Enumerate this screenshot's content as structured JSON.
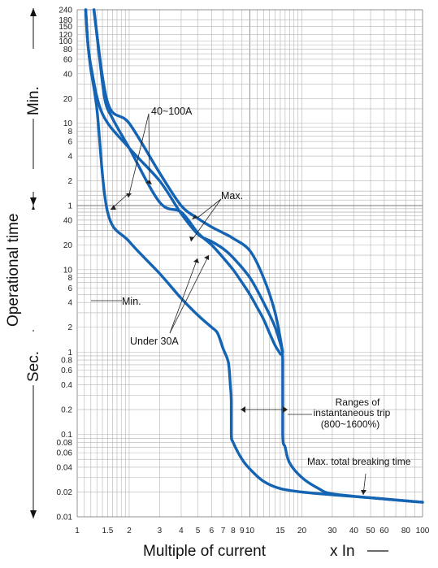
{
  "chart_data": {
    "type": "line",
    "xlabel": "Multiple of current",
    "xlabel_unit": "x In",
    "ylabel": "Operational time",
    "y_unit_min": "Min.",
    "y_unit_sec": "Sec.",
    "x_scale": "log",
    "y_scale": "log",
    "grid": true,
    "xlim": [
      1,
      100
    ],
    "x_ticks": [
      {
        "v": 1,
        "label": "1"
      },
      {
        "v": 1.5,
        "label": "1.5"
      },
      {
        "v": 2,
        "label": "2"
      },
      {
        "v": 3,
        "label": "3"
      },
      {
        "v": 4,
        "label": "4"
      },
      {
        "v": 5,
        "label": "5"
      },
      {
        "v": 6,
        "label": "6"
      },
      {
        "v": 7,
        "label": "7"
      },
      {
        "v": 8,
        "label": "8"
      },
      {
        "v": 9,
        "label": "9"
      },
      {
        "v": 10,
        "label": "10"
      },
      {
        "v": 15,
        "label": "15"
      },
      {
        "v": 20,
        "label": "20"
      },
      {
        "v": 30,
        "label": "30"
      },
      {
        "v": 40,
        "label": "40"
      },
      {
        "v": 50,
        "label": "50"
      },
      {
        "v": 60,
        "label": "60"
      },
      {
        "v": 80,
        "label": "80"
      },
      {
        "v": 100,
        "label": "100"
      }
    ],
    "y_ticks_min": [
      "240",
      "180",
      "150",
      "120",
      "100",
      "80",
      "60",
      "40",
      "20",
      "10",
      "8",
      "6",
      "4",
      "2",
      "1"
    ],
    "y_ticks_sec": [
      "40",
      "20",
      "10",
      "8",
      "6",
      "4",
      "2",
      "1",
      "0.8",
      "0.6",
      "0.4",
      "0.2",
      "0.1",
      "0.08",
      "0.06",
      "0.04",
      "0.02",
      "0.01"
    ],
    "series": [
      {
        "name": "Min.",
        "points": [
          [
            1.12,
            14400
          ],
          [
            1.15,
            6000
          ],
          [
            1.2,
            2700
          ],
          [
            1.3,
            900
          ],
          [
            1.5,
            50
          ],
          [
            2,
            22
          ],
          [
            3,
            9
          ],
          [
            4,
            4.5
          ],
          [
            5,
            2.8
          ],
          [
            6,
            2
          ],
          [
            6.5,
            1.7
          ],
          [
            7,
            1.1
          ],
          [
            7.5,
            0.75
          ],
          [
            7.7,
            0.4
          ],
          [
            7.8,
            0.26
          ],
          [
            7.8,
            0.1
          ],
          [
            8,
            0.08
          ],
          [
            9,
            0.05
          ],
          [
            10,
            0.038
          ],
          [
            12,
            0.027
          ],
          [
            15,
            0.022
          ],
          [
            20,
            0.02
          ],
          [
            30,
            0.0185
          ],
          [
            50,
            0.017
          ],
          [
            100,
            0.015
          ]
        ]
      },
      {
        "name": "Under 30A",
        "points": [
          [
            1.25,
            14400
          ],
          [
            1.3,
            7200
          ],
          [
            1.35,
            3600
          ],
          [
            1.45,
            1140
          ],
          [
            1.6,
            690
          ],
          [
            2,
            300
          ],
          [
            3,
            66
          ],
          [
            4,
            50
          ],
          [
            5,
            28
          ],
          [
            6,
            20
          ],
          [
            7,
            14
          ],
          [
            8,
            10
          ],
          [
            9,
            7
          ],
          [
            10,
            5
          ],
          [
            11,
            3.5
          ],
          [
            12,
            2.5
          ],
          [
            13,
            1.7
          ],
          [
            14,
            1.2
          ],
          [
            15,
            0.95
          ],
          [
            15.5,
            0.8
          ],
          [
            15.5,
            0.1
          ],
          [
            16,
            0.07
          ],
          [
            17,
            0.045
          ],
          [
            20,
            0.03
          ],
          [
            25,
            0.022
          ],
          [
            30,
            0.019
          ],
          [
            50,
            0.017
          ],
          [
            100,
            0.015
          ]
        ]
      },
      {
        "name": "40~100A",
        "points": [
          [
            1.12,
            14400
          ],
          [
            1.15,
            6000
          ],
          [
            1.2,
            3000
          ],
          [
            1.4,
            780
          ],
          [
            2,
            300
          ],
          [
            3,
            120
          ],
          [
            4,
            48
          ],
          [
            5,
            27
          ],
          [
            6,
            22
          ],
          [
            7,
            18
          ],
          [
            8,
            14
          ],
          [
            10,
            8
          ],
          [
            12,
            4
          ],
          [
            14,
            2
          ],
          [
            15.5,
            1
          ]
        ]
      },
      {
        "name": "Max.",
        "points": [
          [
            1.25,
            14400
          ],
          [
            1.5,
            1080
          ],
          [
            2,
            600
          ],
          [
            3,
            150
          ],
          [
            4,
            60
          ],
          [
            5,
            42
          ],
          [
            6,
            33
          ],
          [
            7,
            28
          ],
          [
            8,
            24
          ],
          [
            10,
            17
          ],
          [
            12,
            8
          ],
          [
            14,
            3
          ],
          [
            15.5,
            1
          ]
        ]
      }
    ],
    "annotations": [
      "40~100A",
      "Max.",
      "Min.",
      "Under 30A",
      "Ranges of",
      "instantaneous trip",
      "(800~1600%)",
      "Max. total breaking time"
    ]
  },
  "colors": {
    "curve": "#1564b4",
    "grid": "#b3b3b3",
    "text": "#111111"
  }
}
